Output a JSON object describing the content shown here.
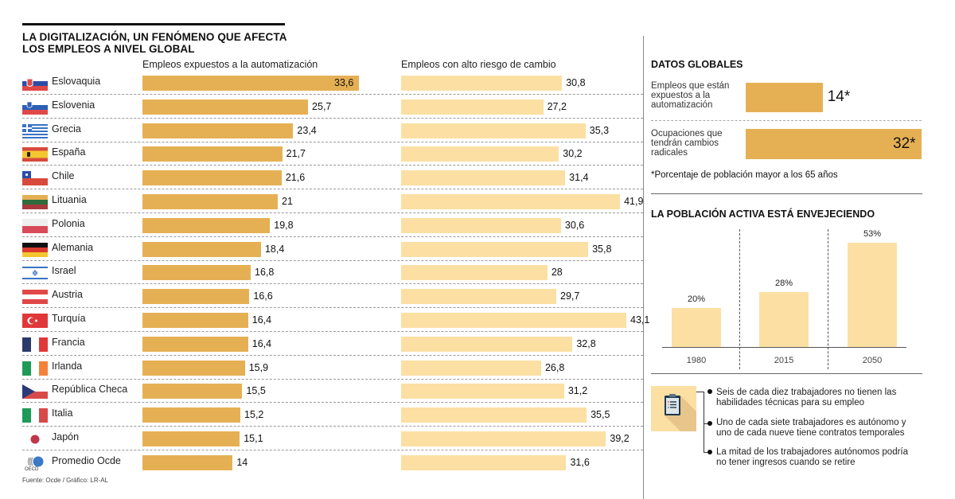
{
  "title": {
    "line1": "LA DIGITALIZACIÓN, UN FENÓMENO QUE AFECTA",
    "line2": "LOS EMPLEOS A NIVEL GLOBAL"
  },
  "colors": {
    "automation_bar": "#e5b054",
    "risk_bar": "#fcdfa3",
    "population_bar": "#fcdfa3"
  },
  "source": "Fuente: Ocde / Gráfico: LR-AL",
  "chart_data": [
    {
      "type": "bar",
      "orientation": "horizontal",
      "title": "LA DIGITALIZACIÓN, UN FENÓMENO QUE AFECTA LOS EMPLEOS A NIVEL GLOBAL",
      "categories": [
        "Eslovaquia",
        "Eslovenia",
        "Grecia",
        "España",
        "Chile",
        "Lituania",
        "Polonia",
        "Alemania",
        "Israel",
        "Austria",
        "Turquía",
        "Francia",
        "Irlanda",
        "República Checa",
        "Italia",
        "Japón",
        "Promedio Ocde"
      ],
      "flags": [
        "slovakia-flag",
        "slovenia-flag",
        "greece-flag",
        "spain-flag",
        "chile-flag",
        "lithuania-flag",
        "poland-flag",
        "germany-flag",
        "israel-flag",
        "austria-flag",
        "turkey-flag",
        "france-flag",
        "ireland-flag",
        "czech-flag",
        "italy-flag",
        "japan-flag",
        "oecd-logo"
      ],
      "series": [
        {
          "name": "Empleos expuestos a la automatización",
          "values": [
            33.6,
            25.7,
            23.4,
            21.7,
            21.6,
            21,
            19.8,
            18.4,
            16.8,
            16.6,
            16.4,
            16.4,
            15.9,
            15.5,
            15.2,
            15.1,
            14
          ],
          "labels": [
            "33,6",
            "25,7",
            "23,4",
            "21,7",
            "21,6",
            "21",
            "19,8",
            "18,4",
            "16,8",
            "16,6",
            "16,4",
            "16,4",
            "15,9",
            "15,5",
            "15,2",
            "15,1",
            "14"
          ]
        },
        {
          "name": "Empleos con alto riesgo de cambio",
          "values": [
            30.8,
            27.2,
            35.3,
            30.2,
            31.4,
            41.9,
            30.6,
            35.8,
            28,
            29.7,
            43.1,
            32.8,
            26.8,
            31.2,
            35.5,
            39.2,
            31.6
          ],
          "labels": [
            "30,8",
            "27,2",
            "35,3",
            "30,2",
            "31,4",
            "41,9",
            "30,6",
            "35,8",
            "28",
            "29,7",
            "43,1",
            "32,8",
            "26,8",
            "31,2",
            "35,5",
            "39,2",
            "31,6"
          ]
        }
      ],
      "xlabel": "",
      "ylabel": ""
    },
    {
      "type": "bar",
      "orientation": "horizontal",
      "title": "DATOS GLOBALES",
      "categories": [
        "Empleos que están expuestos a la automatización",
        "Ocupaciones que tendrán cambios radicales"
      ],
      "values": [
        14,
        32
      ],
      "labels": [
        "14*",
        "32*"
      ],
      "footnote": "*Porcentaje de población mayor a los 65 años"
    },
    {
      "type": "bar",
      "title": "LA POBLACIÓN ACTIVA ESTÁ ENVEJECIENDO",
      "categories": [
        "1980",
        "2015",
        "2050"
      ],
      "values": [
        20,
        28,
        53
      ],
      "labels": [
        "20%",
        "28%",
        "53%"
      ],
      "ylim": [
        0,
        60
      ]
    }
  ],
  "global": {
    "title": "DATOS GLOBALES",
    "items": [
      {
        "label_lines": [
          "Empleos que están",
          "expuestos a la",
          "automatización"
        ]
      },
      {
        "label_lines": [
          "Ocupaciones que",
          "tendrán cambios",
          "radicales"
        ]
      }
    ],
    "footnote": "*Porcentaje de población mayor a los 65 años"
  },
  "population": {
    "title": "LA POBLACIÓN ACTIVA ESTÁ ENVEJECIENDO"
  },
  "facts": {
    "icon": "clipboard-icon",
    "items": [
      {
        "lines": [
          "Seis de cada diez trabajadores no tienen las",
          "habilidades técnicas para su empleo"
        ]
      },
      {
        "lines": [
          "Uno de cada siete trabajadores es autónomo y",
          "uno de cada nueve tiene contratos temporales"
        ]
      },
      {
        "lines": [
          "La mitad de los trabajadores autónomos podría",
          "no tener ingresos cuando se retire"
        ]
      }
    ]
  }
}
